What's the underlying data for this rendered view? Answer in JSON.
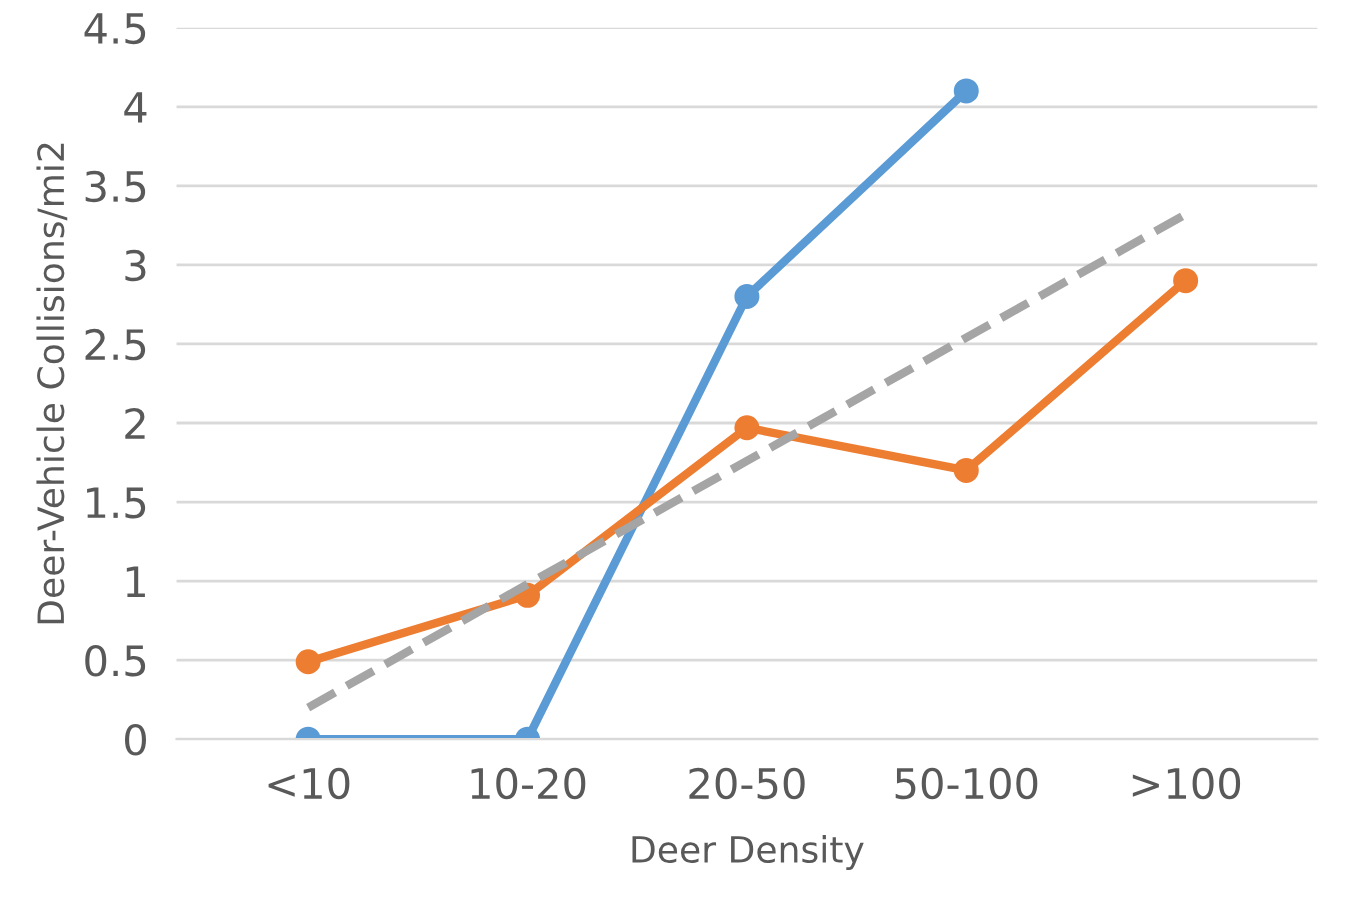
{
  "chart_data": {
    "type": "line",
    "xlabel": "Deer Density",
    "ylabel": "Deer-Vehicle Collisions/mi2",
    "categories": [
      "<10",
      "10-20",
      "20-50",
      "50-100",
      ">100"
    ],
    "series": [
      {
        "color": "#5b9bd5",
        "values": [
          0,
          0,
          2.8,
          4.1,
          null
        ]
      },
      {
        "color": "#ed7d31",
        "values": [
          0.49,
          0.91,
          1.97,
          1.7,
          2.9
        ]
      },
      {
        "color": "#a5a5a5",
        "values": [
          0.2,
          0.98,
          1.76,
          2.54,
          3.32
        ],
        "line_style": "dashed",
        "marker": "none"
      }
    ],
    "ylim": [
      0,
      4.5
    ],
    "yticks": [
      0,
      0.5,
      1,
      1.5,
      2,
      2.5,
      3,
      3.5,
      4,
      4.5
    ],
    "grid": "y",
    "legend": false,
    "marker": "circle",
    "line_style": "solid"
  }
}
